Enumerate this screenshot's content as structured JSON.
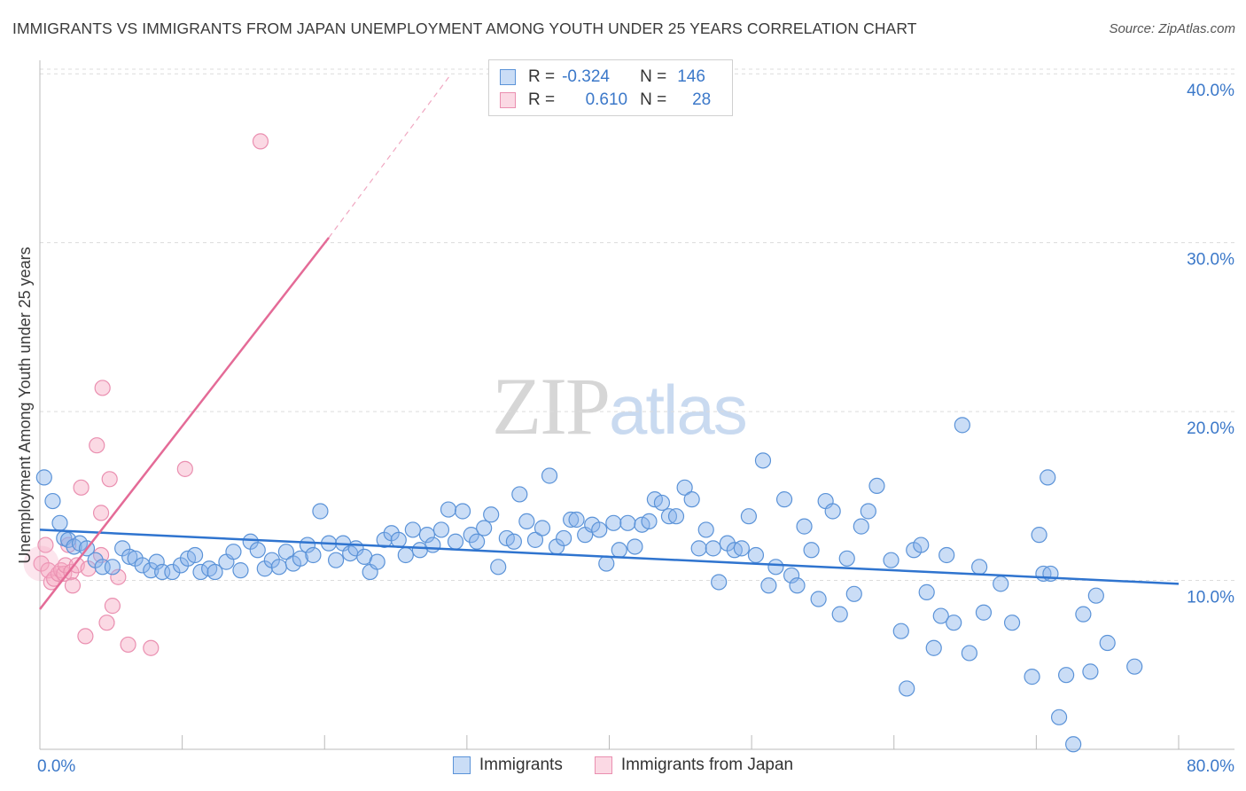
{
  "header": {
    "title": "IMMIGRANTS VS IMMIGRANTS FROM JAPAN UNEMPLOYMENT AMONG YOUTH UNDER 25 YEARS CORRELATION CHART",
    "source": "Source: ZipAtlas.com"
  },
  "watermark": {
    "zip": "ZIP",
    "atlas": "atlas"
  },
  "legend": {
    "rows": [
      {
        "r_label": "R =",
        "r_value": "-0.324",
        "n_label": "N =",
        "n_value": "146",
        "color": "#89b4ea"
      },
      {
        "r_label": "R =",
        "r_value": "0.610",
        "n_label": "N =",
        "n_value": "28",
        "color": "#f6aac3"
      }
    ]
  },
  "bottom_legend": {
    "items": [
      {
        "label": "Immigrants",
        "color": "#89b4ea"
      },
      {
        "label": "Immigrants from Japan",
        "color": "#f6aac3"
      }
    ]
  },
  "chart_data": {
    "type": "scatter",
    "title": "IMMIGRANTS VS IMMIGRANTS FROM JAPAN UNEMPLOYMENT AMONG YOUTH UNDER 25 YEARS CORRELATION CHART",
    "xlabel": "",
    "ylabel": "Unemployment Among Youth under 25 years",
    "xlim": [
      0,
      80
    ],
    "ylim": [
      0,
      40.8
    ],
    "x_tick_labels": [
      "0.0%",
      "80.0%"
    ],
    "y_ticks": [
      10,
      20,
      30,
      40
    ],
    "y_tick_labels": [
      "10.0%",
      "20.0%",
      "30.0%",
      "40.0%"
    ],
    "series": [
      {
        "name": "Immigrants",
        "color": "#5b93d8",
        "trend": {
          "x": [
            0,
            80
          ],
          "y": [
            13.0,
            9.8
          ],
          "dashed_extension": false
        },
        "points": [
          [
            0.3,
            16.1
          ],
          [
            0.9,
            14.7
          ],
          [
            1.4,
            13.4
          ],
          [
            1.7,
            12.5
          ],
          [
            2.0,
            12.4
          ],
          [
            2.4,
            12.0
          ],
          [
            2.8,
            12.2
          ],
          [
            3.3,
            11.9
          ],
          [
            3.9,
            11.2
          ],
          [
            4.4,
            10.8
          ],
          [
            5.1,
            10.8
          ],
          [
            5.8,
            11.9
          ],
          [
            6.3,
            11.4
          ],
          [
            6.7,
            11.3
          ],
          [
            7.2,
            10.9
          ],
          [
            7.8,
            10.6
          ],
          [
            8.2,
            11.1
          ],
          [
            8.6,
            10.5
          ],
          [
            9.3,
            10.5
          ],
          [
            9.9,
            10.9
          ],
          [
            10.4,
            11.3
          ],
          [
            10.9,
            11.5
          ],
          [
            11.3,
            10.5
          ],
          [
            11.9,
            10.7
          ],
          [
            12.3,
            10.5
          ],
          [
            13.1,
            11.1
          ],
          [
            13.6,
            11.7
          ],
          [
            14.1,
            10.6
          ],
          [
            14.8,
            12.3
          ],
          [
            15.3,
            11.8
          ],
          [
            15.8,
            10.7
          ],
          [
            16.3,
            11.2
          ],
          [
            16.8,
            10.8
          ],
          [
            17.3,
            11.7
          ],
          [
            17.8,
            11.0
          ],
          [
            18.3,
            11.3
          ],
          [
            18.8,
            12.1
          ],
          [
            19.2,
            11.5
          ],
          [
            19.7,
            14.1
          ],
          [
            20.3,
            12.2
          ],
          [
            20.8,
            11.2
          ],
          [
            21.3,
            12.2
          ],
          [
            21.8,
            11.6
          ],
          [
            22.2,
            11.9
          ],
          [
            22.8,
            11.4
          ],
          [
            23.2,
            10.5
          ],
          [
            23.7,
            11.1
          ],
          [
            24.2,
            12.4
          ],
          [
            24.7,
            12.8
          ],
          [
            25.2,
            12.4
          ],
          [
            25.7,
            11.5
          ],
          [
            26.2,
            13.0
          ],
          [
            26.7,
            11.8
          ],
          [
            27.2,
            12.7
          ],
          [
            27.6,
            12.1
          ],
          [
            28.2,
            13.0
          ],
          [
            28.7,
            14.2
          ],
          [
            29.2,
            12.3
          ],
          [
            29.7,
            14.1
          ],
          [
            30.3,
            12.7
          ],
          [
            30.7,
            12.3
          ],
          [
            31.2,
            13.1
          ],
          [
            31.7,
            13.9
          ],
          [
            32.2,
            10.8
          ],
          [
            32.8,
            12.5
          ],
          [
            33.3,
            12.3
          ],
          [
            33.7,
            15.1
          ],
          [
            34.2,
            13.5
          ],
          [
            34.8,
            12.4
          ],
          [
            35.3,
            13.1
          ],
          [
            35.8,
            16.2
          ],
          [
            36.3,
            12.0
          ],
          [
            36.8,
            12.5
          ],
          [
            37.3,
            13.6
          ],
          [
            37.7,
            13.6
          ],
          [
            38.3,
            12.7
          ],
          [
            38.8,
            13.3
          ],
          [
            39.3,
            13.0
          ],
          [
            39.8,
            11.0
          ],
          [
            40.3,
            13.4
          ],
          [
            40.7,
            11.8
          ],
          [
            41.3,
            13.4
          ],
          [
            41.8,
            12.0
          ],
          [
            42.3,
            13.3
          ],
          [
            42.8,
            13.5
          ],
          [
            43.2,
            14.8
          ],
          [
            43.7,
            14.6
          ],
          [
            44.2,
            13.8
          ],
          [
            44.7,
            13.8
          ],
          [
            45.3,
            15.5
          ],
          [
            45.8,
            14.8
          ],
          [
            46.3,
            11.9
          ],
          [
            46.8,
            13.0
          ],
          [
            47.3,
            11.9
          ],
          [
            47.7,
            9.9
          ],
          [
            48.3,
            12.2
          ],
          [
            48.8,
            11.8
          ],
          [
            49.3,
            11.9
          ],
          [
            49.8,
            13.8
          ],
          [
            50.3,
            11.5
          ],
          [
            50.8,
            17.1
          ],
          [
            51.2,
            9.7
          ],
          [
            51.7,
            10.8
          ],
          [
            52.3,
            14.8
          ],
          [
            52.8,
            10.3
          ],
          [
            53.2,
            9.7
          ],
          [
            53.7,
            13.2
          ],
          [
            54.2,
            11.8
          ],
          [
            54.7,
            8.9
          ],
          [
            55.2,
            14.7
          ],
          [
            55.7,
            14.1
          ],
          [
            56.2,
            8.0
          ],
          [
            56.7,
            11.3
          ],
          [
            57.2,
            9.2
          ],
          [
            57.7,
            13.2
          ],
          [
            58.2,
            14.1
          ],
          [
            58.8,
            15.6
          ],
          [
            59.8,
            11.2
          ],
          [
            60.5,
            7.0
          ],
          [
            60.9,
            3.6
          ],
          [
            61.4,
            11.8
          ],
          [
            61.9,
            12.1
          ],
          [
            62.3,
            9.3
          ],
          [
            62.8,
            6.0
          ],
          [
            63.3,
            7.9
          ],
          [
            63.7,
            11.5
          ],
          [
            64.2,
            7.5
          ],
          [
            64.8,
            19.2
          ],
          [
            65.3,
            5.7
          ],
          [
            66.3,
            8.1
          ],
          [
            67.5,
            9.8
          ],
          [
            68.3,
            7.5
          ],
          [
            69.7,
            4.3
          ],
          [
            70.2,
            12.7
          ],
          [
            70.5,
            10.4
          ],
          [
            70.8,
            16.1
          ],
          [
            71.6,
            1.9
          ],
          [
            72.1,
            4.4
          ],
          [
            72.6,
            0.3
          ],
          [
            73.3,
            8.0
          ],
          [
            73.8,
            4.6
          ],
          [
            74.2,
            9.1
          ],
          [
            75.0,
            6.3
          ],
          [
            76.9,
            4.9
          ],
          [
            71.0,
            10.4
          ],
          [
            66.0,
            10.8
          ]
        ]
      },
      {
        "name": "Immigrants from Japan",
        "color": "#ea8fb0",
        "trend": {
          "x": [
            0,
            20.3
          ],
          "y": [
            8.3,
            30.3
          ],
          "dashed_extension": true,
          "dashed_to": [
            28.9,
            40.0
          ]
        },
        "points": [
          [
            0.1,
            11.0
          ],
          [
            0.4,
            12.1
          ],
          [
            0.6,
            10.6
          ],
          [
            0.8,
            9.9
          ],
          [
            1.0,
            10.1
          ],
          [
            1.3,
            10.4
          ],
          [
            1.5,
            10.6
          ],
          [
            1.7,
            10.4
          ],
          [
            1.8,
            10.9
          ],
          [
            2.0,
            12.1
          ],
          [
            2.2,
            10.5
          ],
          [
            2.3,
            9.7
          ],
          [
            2.6,
            10.9
          ],
          [
            2.9,
            15.5
          ],
          [
            3.2,
            6.7
          ],
          [
            3.4,
            10.7
          ],
          [
            4.0,
            18.0
          ],
          [
            4.3,
            14.0
          ],
          [
            4.4,
            21.4
          ],
          [
            4.7,
            7.5
          ],
          [
            4.9,
            16.0
          ],
          [
            5.1,
            8.5
          ],
          [
            5.5,
            10.2
          ],
          [
            6.2,
            6.2
          ],
          [
            7.8,
            6.0
          ],
          [
            10.2,
            16.6
          ],
          [
            15.5,
            36.0
          ],
          [
            4.3,
            11.5
          ]
        ]
      }
    ]
  }
}
